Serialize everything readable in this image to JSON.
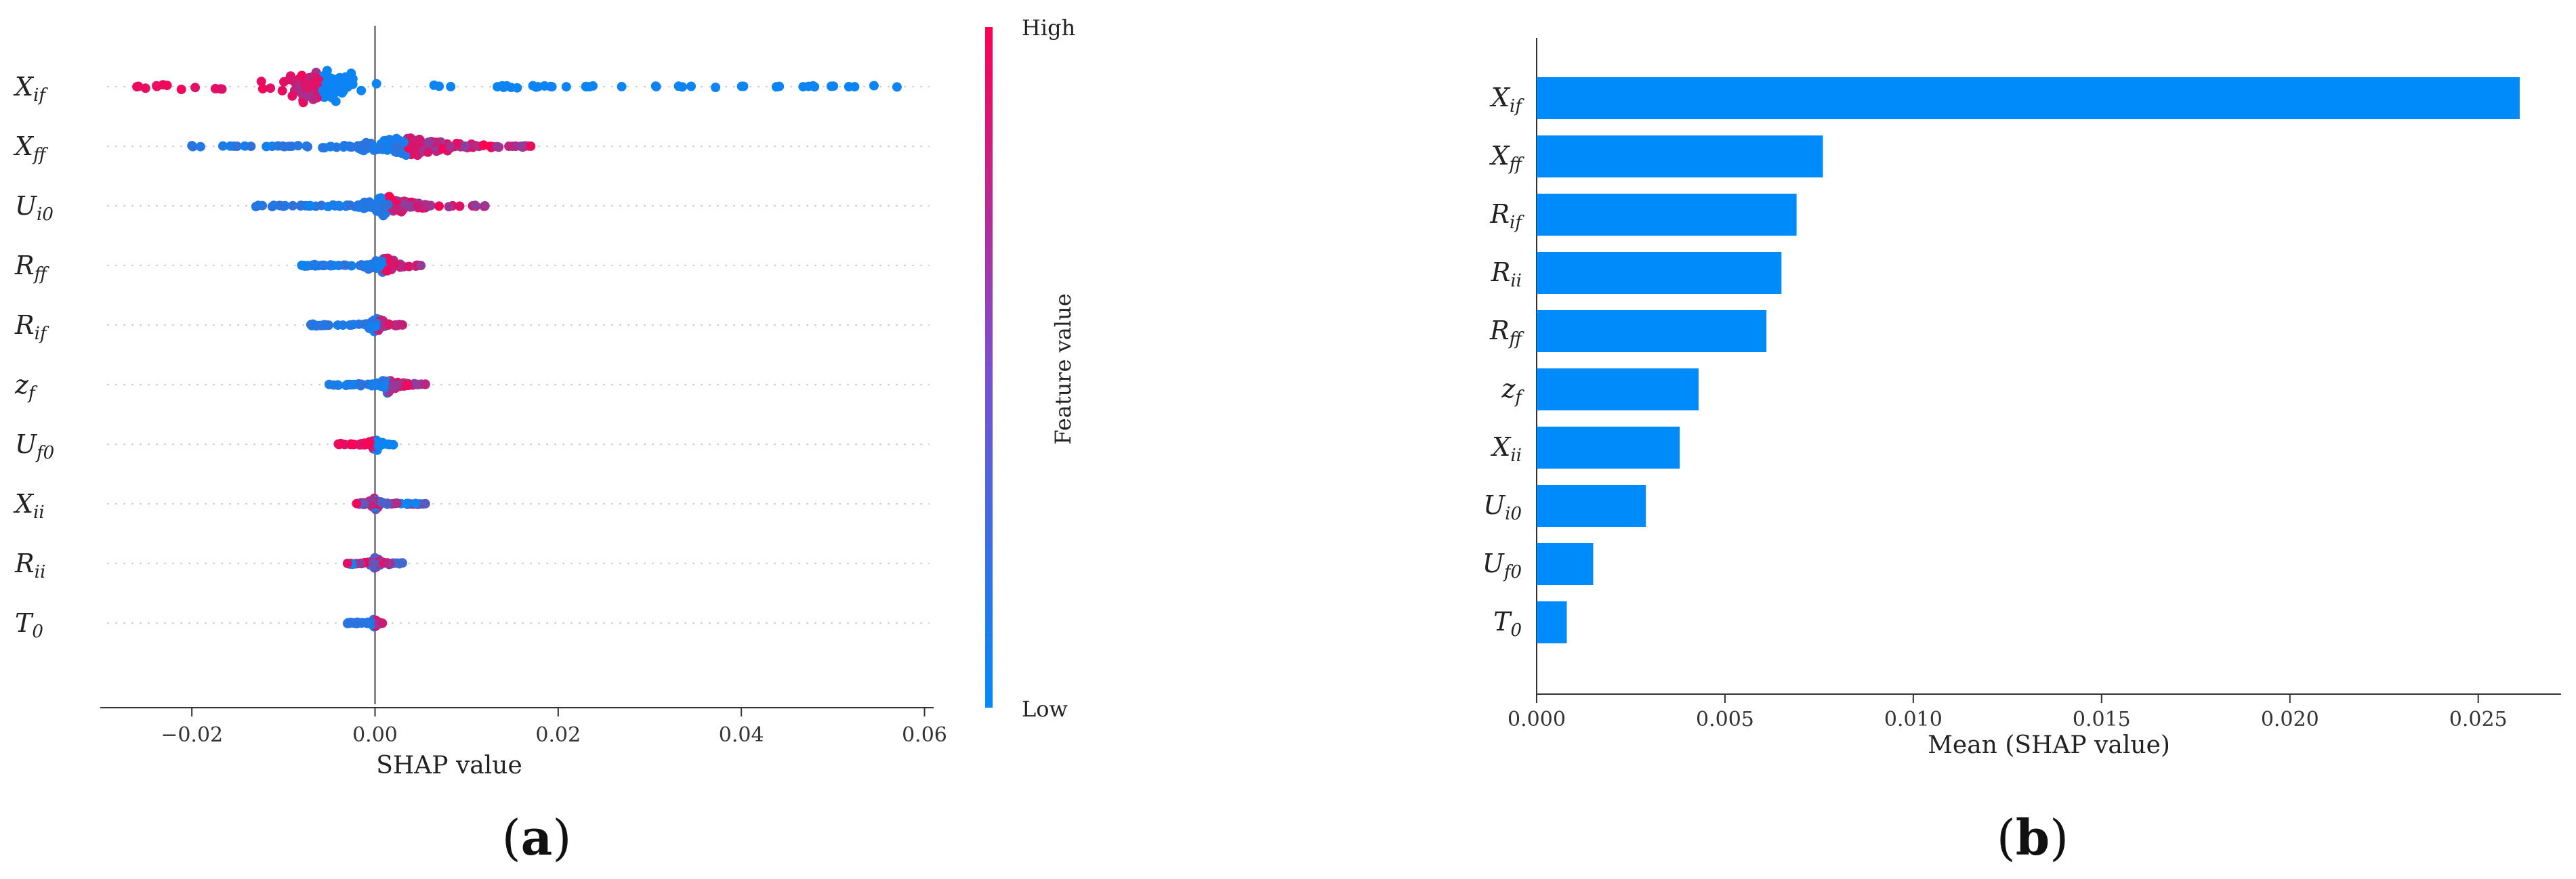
{
  "chart_data": [
    {
      "type": "scatter",
      "subtype": "shap-beeswarm",
      "panel_label": "a",
      "title": "",
      "xlabel": "SHAP value",
      "ylabel": "",
      "xlim": [
        -0.03,
        0.061
      ],
      "xticks": [
        "−0.02",
        "0.00",
        "0.02",
        "0.04",
        "0.06"
      ],
      "xtick_values": [
        -0.02,
        0.0,
        0.02,
        0.04,
        0.06
      ],
      "grid": "dotted horizontal row lines",
      "features": [
        {
          "name": "X",
          "sub": "if",
          "min": -0.026,
          "max": 0.057,
          "core_lo": -0.009,
          "core_hi": -0.003,
          "width": 1.0,
          "low_color_side": "right"
        },
        {
          "name": "X",
          "sub": "ff",
          "min": -0.02,
          "max": 0.017,
          "core_lo": -0.004,
          "core_hi": 0.011,
          "width": 0.9,
          "low_color_side": "left"
        },
        {
          "name": "U",
          "sub": "i0",
          "min": -0.013,
          "max": 0.012,
          "core_lo": -0.002,
          "core_hi": 0.005,
          "width": 0.8,
          "low_color_side": "left"
        },
        {
          "name": "R",
          "sub": "ff",
          "min": -0.008,
          "max": 0.005,
          "core_lo": -0.001,
          "core_hi": 0.003,
          "width": 0.6,
          "low_color_side": "left"
        },
        {
          "name": "R",
          "sub": "if",
          "min": -0.007,
          "max": 0.003,
          "core_lo": -0.0005,
          "core_hi": 0.001,
          "width": 0.55,
          "low_color_side": "left"
        },
        {
          "name": "z",
          "sub": "f",
          "min": -0.005,
          "max": 0.0055,
          "core_lo": -0.001,
          "core_hi": 0.004,
          "width": 0.5,
          "low_color_side": "left"
        },
        {
          "name": "U",
          "sub": "f0",
          "min": -0.004,
          "max": 0.002,
          "core_lo": -0.0005,
          "core_hi": 0.0005,
          "width": 0.45,
          "low_color_side": "right"
        },
        {
          "name": "X",
          "sub": "ii",
          "min": -0.002,
          "max": 0.0055,
          "core_lo": -0.0005,
          "core_hi": 0.0005,
          "width": 0.45,
          "low_color_side": "none"
        },
        {
          "name": "R",
          "sub": "ii",
          "min": -0.003,
          "max": 0.003,
          "core_lo": -0.0005,
          "core_hi": 0.0005,
          "width": 0.45,
          "low_color_side": "none"
        },
        {
          "name": "T",
          "sub": "0",
          "min": -0.003,
          "max": 0.0008,
          "core_lo": -0.0003,
          "core_hi": 0.0003,
          "width": 0.3,
          "low_color_side": "left"
        }
      ],
      "colorbar": {
        "label": "Feature value",
        "high_label": "High",
        "low_label": "Low",
        "high_color": "#ff0052",
        "low_color": "#008bfb"
      }
    },
    {
      "type": "bar",
      "orientation": "horizontal",
      "panel_label": "b",
      "title": "",
      "xlabel": "Mean (SHAP value)",
      "ylabel": "",
      "xlim": [
        0.0,
        0.0272
      ],
      "xticks": [
        "0.000",
        "0.005",
        "0.010",
        "0.015",
        "0.020",
        "0.025"
      ],
      "xtick_values": [
        0.0,
        0.005,
        0.01,
        0.015,
        0.02,
        0.025
      ],
      "bar_color": "#008bfb",
      "categories": [
        {
          "name": "X",
          "sub": "if"
        },
        {
          "name": "X",
          "sub": "ff"
        },
        {
          "name": "R",
          "sub": "if"
        },
        {
          "name": "R",
          "sub": "ii"
        },
        {
          "name": "R",
          "sub": "ff"
        },
        {
          "name": "z",
          "sub": "f"
        },
        {
          "name": "X",
          "sub": "ii"
        },
        {
          "name": "U",
          "sub": "i0"
        },
        {
          "name": "U",
          "sub": "f0"
        },
        {
          "name": "T",
          "sub": "0"
        }
      ],
      "values": [
        0.0261,
        0.0076,
        0.0069,
        0.0065,
        0.0061,
        0.0043,
        0.0038,
        0.0029,
        0.0015,
        0.0008
      ]
    }
  ]
}
